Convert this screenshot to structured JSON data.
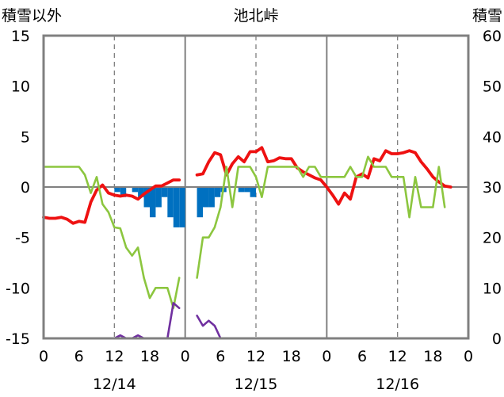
{
  "chart_data": {
    "type": "line",
    "title": "池北峠",
    "ylabel_left": "積雪以外",
    "ylabel_right": "積雪",
    "xlabel": "",
    "ylim_left": [
      -15,
      15
    ],
    "ylim_right": [
      0,
      60
    ],
    "yticks_left": [
      "15",
      "10",
      "5",
      "0",
      "-5",
      "-10",
      "-15"
    ],
    "yticks_right": [
      "60",
      "50",
      "40",
      "30",
      "20",
      "10",
      "0"
    ],
    "xlim": [
      0,
      72
    ],
    "x_tick_hours": [
      0,
      6,
      12,
      18,
      24,
      30,
      36,
      42,
      48,
      54,
      60,
      66,
      72
    ],
    "x_tick_labels": [
      "0",
      "6",
      "12",
      "18",
      "0",
      "6",
      "12",
      "18",
      "0",
      "6",
      "12",
      "18",
      "0"
    ],
    "date_labels": [
      {
        "hour": 12,
        "label": "12/14"
      },
      {
        "hour": 36,
        "label": "12/15"
      },
      {
        "hour": 60,
        "label": "12/16"
      }
    ],
    "grid": {
      "dashed_hours": [
        12,
        36,
        60
      ],
      "solid_hours": [
        24,
        48
      ]
    },
    "colors": {
      "red": "#ee1111",
      "green": "#8cc63f",
      "purple": "#7030a0",
      "bars": "#0070c0",
      "axis": "#808080"
    },
    "series": [
      {
        "color": "red",
        "axis": "left",
        "segments": [
          [
            [
              0,
              -3
            ],
            [
              1,
              -3.1
            ],
            [
              2,
              -3.1
            ],
            [
              3,
              -3
            ],
            [
              4,
              -3.2
            ],
            [
              5,
              -3.6
            ],
            [
              6,
              -3.4
            ],
            [
              7,
              -3.5
            ],
            [
              8,
              -1.5
            ],
            [
              9,
              -0.3
            ],
            [
              10,
              0.2
            ],
            [
              11,
              -0.6
            ],
            [
              12,
              -0.8
            ],
            [
              13,
              -0.9
            ],
            [
              14,
              -0.8
            ],
            [
              15,
              -0.9
            ],
            [
              16,
              -1.2
            ],
            [
              17,
              -0.7
            ],
            [
              18,
              -0.3
            ],
            [
              19,
              0.1
            ],
            [
              20,
              0.1
            ],
            [
              21,
              0.4
            ],
            [
              22,
              0.7
            ],
            [
              23,
              0.7
            ]
          ],
          [
            [
              26,
              1.2
            ],
            [
              27,
              1.3
            ],
            [
              28,
              2.5
            ],
            [
              29,
              3.4
            ],
            [
              30,
              3.2
            ],
            [
              31,
              1.2
            ],
            [
              32,
              2.3
            ],
            [
              33,
              3
            ],
            [
              34,
              2.5
            ],
            [
              35,
              3.5
            ],
            [
              36,
              3.5
            ],
            [
              37,
              3.9
            ],
            [
              38,
              2.5
            ],
            [
              39,
              2.6
            ],
            [
              40,
              2.9
            ],
            [
              41,
              2.8
            ],
            [
              42,
              2.8
            ],
            [
              43,
              1.9
            ],
            [
              44,
              1.5
            ],
            [
              45,
              1.2
            ],
            [
              46,
              0.9
            ],
            [
              47,
              0.7
            ],
            [
              48,
              0
            ],
            [
              49,
              -0.8
            ],
            [
              50,
              -1.7
            ],
            [
              51,
              -0.6
            ],
            [
              52,
              -1.2
            ],
            [
              53,
              1
            ],
            [
              54,
              1.3
            ],
            [
              55,
              0.9
            ],
            [
              56,
              2.8
            ],
            [
              57,
              2.6
            ],
            [
              58,
              3.6
            ],
            [
              59,
              3.3
            ],
            [
              60,
              3.3
            ],
            [
              61,
              3.4
            ],
            [
              62,
              3.6
            ],
            [
              63,
              3.4
            ],
            [
              64,
              2.5
            ],
            [
              65,
              1.8
            ],
            [
              66,
              1
            ],
            [
              67,
              0.5
            ],
            [
              68,
              0.1
            ],
            [
              69,
              0
            ]
          ]
        ]
      },
      {
        "color": "green",
        "axis": "left",
        "segments": [
          [
            [
              0,
              2
            ],
            [
              1,
              2
            ],
            [
              2,
              2
            ],
            [
              3,
              2
            ],
            [
              4,
              2
            ],
            [
              5,
              2
            ],
            [
              6,
              2
            ],
            [
              7,
              1.2
            ],
            [
              8,
              -0.6
            ],
            [
              9,
              1
            ],
            [
              10,
              -1.7
            ],
            [
              11,
              -2.5
            ],
            [
              12,
              -4
            ],
            [
              13,
              -4.1
            ],
            [
              14,
              -6
            ],
            [
              15,
              -6.8
            ],
            [
              16,
              -6
            ],
            [
              17,
              -9
            ],
            [
              18,
              -11
            ],
            [
              19,
              -10
            ],
            [
              20,
              -10
            ],
            [
              21,
              -10
            ],
            [
              22,
              -12
            ],
            [
              23,
              -9
            ]
          ],
          [
            [
              26,
              -9
            ],
            [
              27,
              -5
            ],
            [
              28,
              -5
            ],
            [
              29,
              -4
            ],
            [
              30,
              -2
            ],
            [
              31,
              2
            ],
            [
              32,
              -2
            ],
            [
              33,
              2
            ],
            [
              34,
              2
            ],
            [
              35,
              2
            ],
            [
              36,
              1
            ],
            [
              37,
              -1
            ],
            [
              38,
              2
            ],
            [
              39,
              2
            ],
            [
              40,
              2
            ],
            [
              41,
              2
            ],
            [
              42,
              2
            ],
            [
              43,
              2
            ],
            [
              44,
              1
            ],
            [
              45,
              2
            ],
            [
              46,
              2
            ],
            [
              47,
              1
            ],
            [
              48,
              1
            ],
            [
              49,
              1
            ],
            [
              50,
              1
            ],
            [
              51,
              1
            ],
            [
              52,
              2
            ],
            [
              53,
              1
            ],
            [
              54,
              1
            ],
            [
              55,
              3
            ],
            [
              56,
              2
            ],
            [
              57,
              2
            ],
            [
              58,
              2
            ],
            [
              59,
              1
            ],
            [
              60,
              1
            ],
            [
              61,
              1
            ],
            [
              62,
              -3
            ],
            [
              63,
              1
            ],
            [
              64,
              -2
            ],
            [
              65,
              -2
            ],
            [
              66,
              -2
            ],
            [
              67,
              2
            ],
            [
              68,
              -2
            ]
          ]
        ]
      },
      {
        "color": "purple",
        "axis": "right",
        "segments": [
          [
            [
              0,
              0
            ],
            [
              1,
              0
            ],
            [
              2,
              0
            ],
            [
              3,
              0
            ],
            [
              4,
              0
            ],
            [
              5,
              0
            ],
            [
              6,
              0
            ],
            [
              7,
              0
            ],
            [
              8,
              0
            ],
            [
              9,
              0
            ],
            [
              10,
              0
            ],
            [
              11,
              0
            ],
            [
              12,
              0
            ],
            [
              13,
              0.6
            ],
            [
              14,
              0
            ],
            [
              15,
              0
            ],
            [
              16,
              0.6
            ],
            [
              17,
              0
            ],
            [
              18,
              0
            ],
            [
              19,
              0
            ],
            [
              20,
              0
            ],
            [
              21,
              0
            ],
            [
              22,
              7
            ],
            [
              23,
              6
            ]
          ],
          [
            [
              26,
              4.5
            ],
            [
              27,
              2.5
            ],
            [
              28,
              3.5
            ],
            [
              29,
              2.5
            ],
            [
              30,
              0
            ],
            [
              31,
              0
            ],
            [
              32,
              0
            ],
            [
              33,
              0
            ],
            [
              34,
              0
            ],
            [
              35,
              0
            ],
            [
              36,
              0
            ],
            [
              37,
              0
            ],
            [
              38,
              0
            ],
            [
              39,
              0
            ],
            [
              40,
              0
            ],
            [
              41,
              0
            ],
            [
              42,
              0
            ],
            [
              43,
              0
            ],
            [
              44,
              0
            ],
            [
              45,
              0
            ],
            [
              46,
              0
            ],
            [
              47,
              0
            ],
            [
              48,
              0
            ],
            [
              49,
              0
            ],
            [
              50,
              0
            ],
            [
              51,
              0
            ],
            [
              52,
              0
            ],
            [
              53,
              0
            ],
            [
              54,
              0
            ],
            [
              55,
              0
            ],
            [
              56,
              0
            ],
            [
              57,
              0
            ],
            [
              58,
              0
            ],
            [
              59,
              0
            ],
            [
              60,
              0
            ],
            [
              61,
              0
            ],
            [
              62,
              0
            ],
            [
              63,
              0
            ],
            [
              64,
              0
            ],
            [
              65,
              0
            ],
            [
              66,
              0
            ],
            [
              67,
              0
            ],
            [
              68,
              0
            ],
            [
              69,
              0
            ]
          ]
        ]
      }
    ],
    "bars": {
      "color": "bars",
      "axis": "left",
      "hour_width": 1,
      "values": [
        {
          "hour": 12,
          "value": -0.5
        },
        {
          "hour": 13,
          "value": -1
        },
        {
          "hour": 15,
          "value": -0.5
        },
        {
          "hour": 16,
          "value": -1
        },
        {
          "hour": 17,
          "value": -2
        },
        {
          "hour": 18,
          "value": -3
        },
        {
          "hour": 19,
          "value": -2
        },
        {
          "hour": 20,
          "value": -1
        },
        {
          "hour": 21,
          "value": -3
        },
        {
          "hour": 22,
          "value": -4
        },
        {
          "hour": 23,
          "value": -4
        },
        {
          "hour": 26,
          "value": -3
        },
        {
          "hour": 27,
          "value": -2
        },
        {
          "hour": 28,
          "value": -2
        },
        {
          "hour": 29,
          "value": -1
        },
        {
          "hour": 30,
          "value": -0.5
        },
        {
          "hour": 33,
          "value": -0.5
        },
        {
          "hour": 34,
          "value": -0.5
        },
        {
          "hour": 35,
          "value": -1
        }
      ]
    }
  }
}
